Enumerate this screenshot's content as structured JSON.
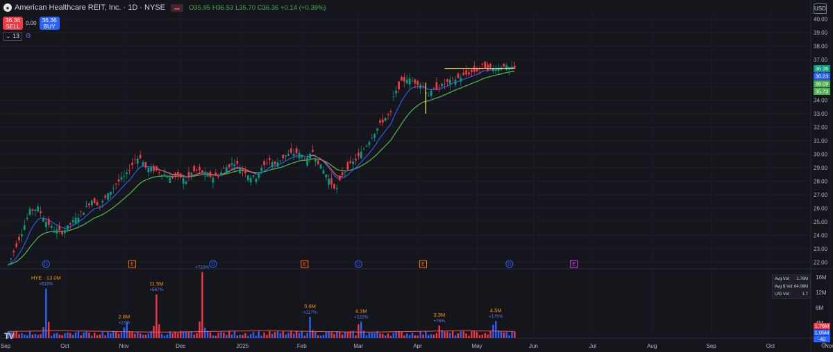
{
  "header": {
    "title": "American Healthcare REIT, Inc. · 1D · NYSE",
    "ohlc_text": "O35.95 H36.53 L35.70 C36.36 +0.14 (+0.39%)",
    "currency": "USD"
  },
  "trade": {
    "sell_price": "36.36",
    "sell_label": "SELL",
    "spread": "0.00",
    "buy_price": "36.36",
    "buy_label": "BUY"
  },
  "indicator": {
    "count": "13"
  },
  "colors": {
    "up": "#089981",
    "down": "#f23645",
    "ema_fast": "#2962ff",
    "ema_slow": "#4caf50",
    "ema_mid": "#ff5252",
    "vol_up": "#2962ff",
    "vol_down": "#f23645",
    "vol_avg": "#ff5252",
    "hline": "#f7e36b",
    "event_d": "#2962ff",
    "event_e": "#ff6d00",
    "event_e2": "#e040fb"
  },
  "chart_data": {
    "type": "candlestick",
    "price_axis": {
      "ylim": [
        21.5,
        40.5
      ],
      "ticks": [
        "22.00",
        "23.00",
        "24.00",
        "25.00",
        "26.00",
        "27.00",
        "28.00",
        "29.00",
        "30.00",
        "31.00",
        "32.00",
        "33.00",
        "34.00",
        "35.00",
        "36.00",
        "37.00",
        "38.00",
        "39.00",
        "40.00"
      ],
      "tick_values": [
        22,
        23,
        24,
        25,
        26,
        27,
        28,
        29,
        30,
        31,
        32,
        33,
        34,
        35,
        36,
        37,
        38,
        39,
        40
      ],
      "last_price_labels": [
        {
          "text": "36.36",
          "value": 36.36,
          "color": "#089981"
        },
        {
          "text": "36.23",
          "value": 36.23,
          "color": "#2962ff"
        },
        {
          "text": "36.09",
          "value": 36.09,
          "color": "#4caf50"
        },
        {
          "text": "35.73",
          "value": 35.73,
          "color": "#4caf50"
        }
      ]
    },
    "time_axis": {
      "labels": [
        "Sep",
        "Oct",
        "Nov",
        "Dec",
        "2025",
        "Feb",
        "Mar",
        "Apr",
        "May",
        "Jun",
        "Jul",
        "Aug",
        "Sep",
        "Oct",
        "Nov",
        "Dec"
      ],
      "positions": [
        0,
        22,
        44,
        65,
        88,
        110,
        131,
        153,
        175,
        196,
        218,
        240,
        262,
        284,
        306,
        328
      ]
    },
    "price_path": [
      [
        0,
        21.8
      ],
      [
        5,
        24.2
      ],
      [
        8,
        25.8
      ],
      [
        11,
        26.0
      ],
      [
        14,
        25.0
      ],
      [
        17,
        24.4
      ],
      [
        20,
        24.2
      ],
      [
        24,
        25.0
      ],
      [
        28,
        25.8
      ],
      [
        31,
        26.6
      ],
      [
        34,
        26.2
      ],
      [
        37,
        27.0
      ],
      [
        40,
        27.8
      ],
      [
        44,
        28.5
      ],
      [
        47,
        29.6
      ],
      [
        49,
        29.8
      ],
      [
        51,
        29.0
      ],
      [
        53,
        28.9
      ],
      [
        56,
        28.7
      ],
      [
        58,
        28.5
      ],
      [
        60,
        28.2
      ],
      [
        62,
        28.4
      ],
      [
        64,
        28.3
      ],
      [
        66,
        28.0
      ],
      [
        68,
        28.6
      ],
      [
        70,
        28.8
      ],
      [
        72,
        28.7
      ],
      [
        74,
        28.4
      ],
      [
        76,
        28.3
      ],
      [
        78,
        28.4
      ],
      [
        80,
        28.9
      ],
      [
        84,
        29.4
      ],
      [
        86,
        29.0
      ],
      [
        88,
        28.7
      ],
      [
        90,
        28.3
      ],
      [
        92,
        28.3
      ],
      [
        94,
        28.9
      ],
      [
        97,
        29.6
      ],
      [
        99,
        29.2
      ],
      [
        101,
        29.6
      ],
      [
        103,
        29.9
      ],
      [
        105,
        30.0
      ],
      [
        107,
        30.1
      ],
      [
        109,
        29.9
      ],
      [
        111,
        29.6
      ],
      [
        113,
        30.2
      ],
      [
        115,
        29.4
      ],
      [
        118,
        28.5
      ],
      [
        120,
        27.8
      ],
      [
        122,
        27.4
      ],
      [
        124,
        28.5
      ],
      [
        126,
        29.0
      ],
      [
        128,
        29.4
      ],
      [
        130,
        29.8
      ],
      [
        132,
        30.4
      ],
      [
        134,
        31.0
      ],
      [
        136,
        31.6
      ],
      [
        138,
        32.2
      ],
      [
        140,
        32.7
      ],
      [
        142,
        33.0
      ],
      [
        143,
        34.2
      ],
      [
        144,
        34.6
      ],
      [
        146,
        35.3
      ],
      [
        148,
        35.6
      ],
      [
        150,
        35.4
      ],
      [
        153,
        35.2
      ],
      [
        156,
        34.4
      ],
      [
        159,
        34.9
      ],
      [
        162,
        35.2
      ],
      [
        165,
        35.5
      ],
      [
        168,
        35.7
      ],
      [
        171,
        36.0
      ],
      [
        174,
        36.2
      ],
      [
        176,
        36.5
      ],
      [
        179,
        36.3
      ],
      [
        182,
        36.4
      ],
      [
        184,
        36.6
      ],
      [
        186,
        36.3
      ],
      [
        188,
        36.36
      ]
    ],
    "volume_axis": {
      "ylim": [
        0,
        17500000
      ],
      "ticks": [
        "16M",
        "12M",
        "8M",
        "4M"
      ],
      "tick_values": [
        16000000,
        12000000,
        8000000,
        4000000
      ],
      "last_labels": [
        {
          "text": "1.76M",
          "value": 1760000,
          "color": "#f23645"
        },
        {
          "text": "1.05M",
          "value": 1050000,
          "color": "#2962ff"
        },
        {
          "text": "-40",
          "value": 0,
          "color": "#2962ff"
        }
      ]
    },
    "volume_spikes": [
      {
        "bar": 14,
        "value": 13000000,
        "label": "HYE · 13.0M",
        "pct": "+516%",
        "up": true
      },
      {
        "bar": 43,
        "value": 2800000,
        "label": "2.8M",
        "pct": "+27%",
        "up": true
      },
      {
        "bar": 55,
        "value": 11500000,
        "label": "11.5M",
        "pct": "+567%",
        "up": true
      },
      {
        "bar": 72,
        "value": 17400000,
        "label": "",
        "pct": "+723%",
        "up": true
      },
      {
        "bar": 112,
        "value": 5600000,
        "label": "5.6M",
        "pct": "+217%",
        "up": true
      },
      {
        "bar": 131,
        "value": 4300000,
        "label": "4.3M",
        "pct": "+122%",
        "up": true
      },
      {
        "bar": 160,
        "value": 3300000,
        "label": "3.3M",
        "pct": "+76%",
        "up": true
      },
      {
        "bar": 181,
        "value": 4500000,
        "label": "4.5M",
        "pct": "+175%",
        "up": true
      }
    ],
    "volume_info": [
      {
        "k": "Avg Vol:",
        "v": "1.76M"
      },
      {
        "k": "Avg $ Vol:",
        "v": "64.08M"
      },
      {
        "k": "U/D Vol:",
        "v": "1.7"
      }
    ],
    "events": [
      {
        "bar": 14,
        "kind": "D"
      },
      {
        "bar": 46,
        "kind": "E"
      },
      {
        "bar": 76,
        "kind": "D"
      },
      {
        "bar": 110,
        "kind": "E"
      },
      {
        "bar": 130,
        "kind": "D"
      },
      {
        "bar": 154,
        "kind": "E"
      },
      {
        "bar": 186,
        "kind": "D"
      },
      {
        "bar": 210,
        "kind": "E2"
      }
    ],
    "hline": {
      "from_bar": 162,
      "to_bar": 188,
      "value": 36.36
    },
    "vline": {
      "bar": 155,
      "from": 33.0,
      "to": 35.3
    }
  }
}
